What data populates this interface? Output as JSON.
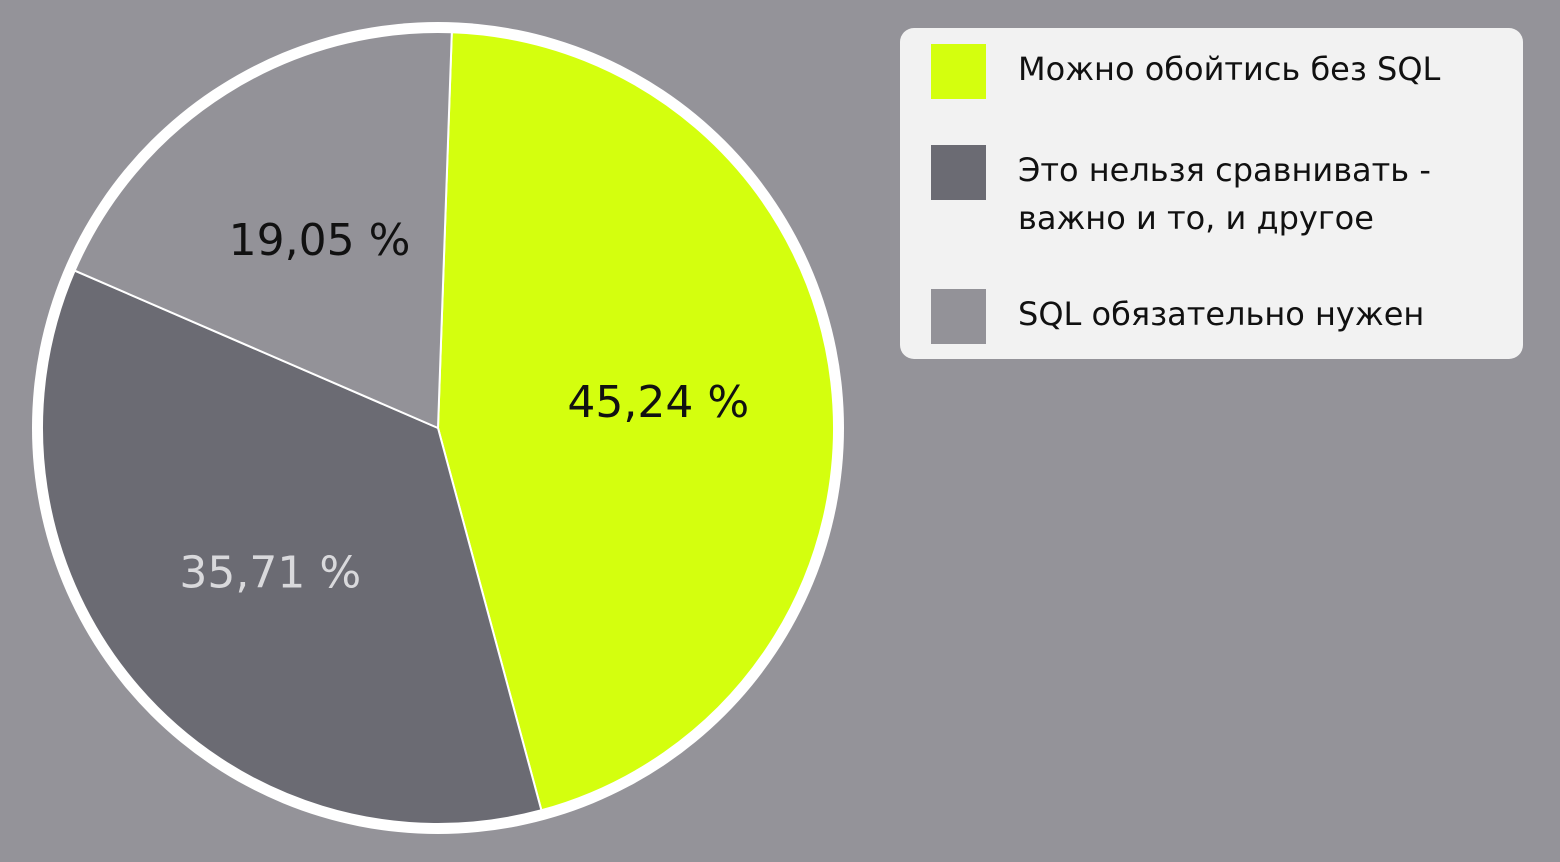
{
  "chart_data": {
    "type": "pie",
    "categories": [
      "Можно обойтись без SQL",
      "Это нельзя сравнивать -\nважно и то, и другое",
      "SQL обязательно нужен"
    ],
    "values": [
      45.24,
      35.71,
      19.05
    ],
    "value_labels": [
      "45,24 %",
      "35,71 %",
      "19,05 %"
    ],
    "colors": [
      "#d4ff0e",
      "#6b6b73",
      "#939298"
    ],
    "label_colors": [
      "#111111",
      "#d9d9dc",
      "#111111"
    ],
    "start_angle_deg": 2,
    "direction": "clockwise",
    "legend_position": "top-right"
  },
  "background_color": "#949399",
  "border_color": "#ffffff"
}
